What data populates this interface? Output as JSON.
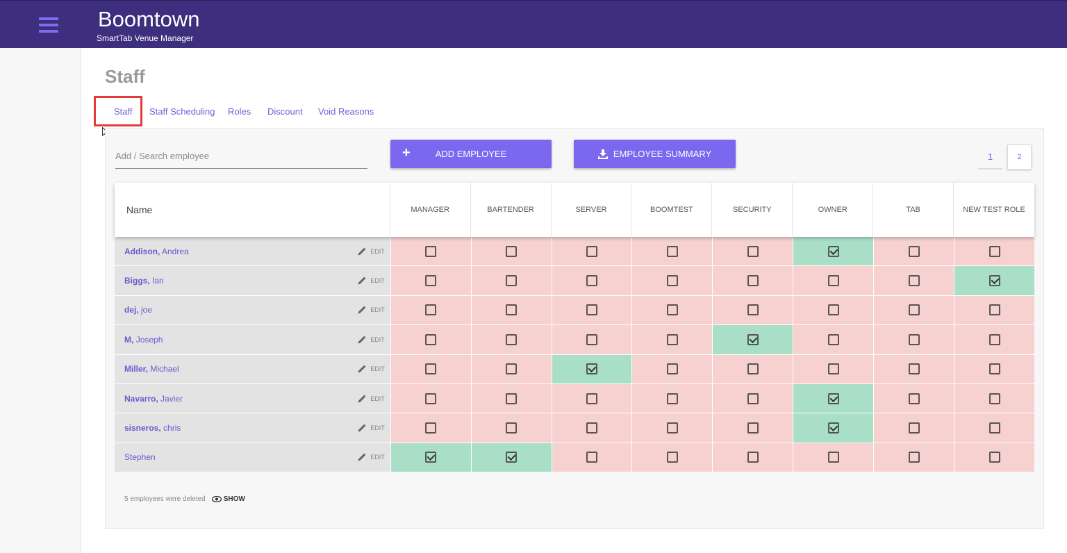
{
  "header": {
    "title": "Boomtown",
    "subtitle": "SmartTab Venue Manager"
  },
  "page": {
    "title": "Staff"
  },
  "tabs": [
    {
      "label": "Staff",
      "active": true
    },
    {
      "label": "Staff Scheduling"
    },
    {
      "label": "Roles"
    },
    {
      "label": "Discount"
    },
    {
      "label": "Void Reasons"
    }
  ],
  "search": {
    "placeholder": "Add / Search employee",
    "value": ""
  },
  "buttons": {
    "add_employee": "ADD EMPLOYEE",
    "employee_summary": "EMPLOYEE SUMMARY"
  },
  "pagination": [
    "1",
    "2"
  ],
  "table": {
    "name_header": "Name",
    "edit_label": "EDIT",
    "roles": [
      "MANAGER",
      "BARTENDER",
      "SERVER",
      "BOOMTEST",
      "SECURITY",
      "OWNER",
      "TAB",
      "NEW TEST ROLE"
    ],
    "rows": [
      {
        "last": "Addison,",
        "first": "Andrea",
        "roles": [
          false,
          false,
          false,
          false,
          false,
          true,
          false,
          false
        ]
      },
      {
        "last": "Biggs,",
        "first": "Ian",
        "roles": [
          false,
          false,
          false,
          false,
          false,
          false,
          false,
          true
        ]
      },
      {
        "last": "dej,",
        "first": "joe",
        "roles": [
          false,
          false,
          false,
          false,
          false,
          false,
          false,
          false
        ]
      },
      {
        "last": "M,",
        "first": "Joseph",
        "roles": [
          false,
          false,
          false,
          false,
          true,
          false,
          false,
          false
        ]
      },
      {
        "last": "Miller,",
        "first": "Michael",
        "roles": [
          false,
          false,
          true,
          false,
          false,
          false,
          false,
          false
        ]
      },
      {
        "last": "Navarro,",
        "first": "Javier",
        "roles": [
          false,
          false,
          false,
          false,
          false,
          true,
          false,
          false
        ]
      },
      {
        "last": "sisneros,",
        "first": "chris",
        "roles": [
          false,
          false,
          false,
          false,
          false,
          true,
          false,
          false
        ]
      },
      {
        "last": "",
        "first": "Stephen",
        "roles": [
          true,
          true,
          false,
          false,
          false,
          false,
          false,
          false
        ]
      }
    ]
  },
  "footer": {
    "deleted_text": "5 employees were deleted",
    "show_label": "SHOW"
  },
  "colors": {
    "header_bg": "#3d2f7d",
    "accent": "#7b68ee",
    "role_off": "#f7d0d0",
    "role_on": "#a8dfc6",
    "highlight": "#e23b3b"
  }
}
